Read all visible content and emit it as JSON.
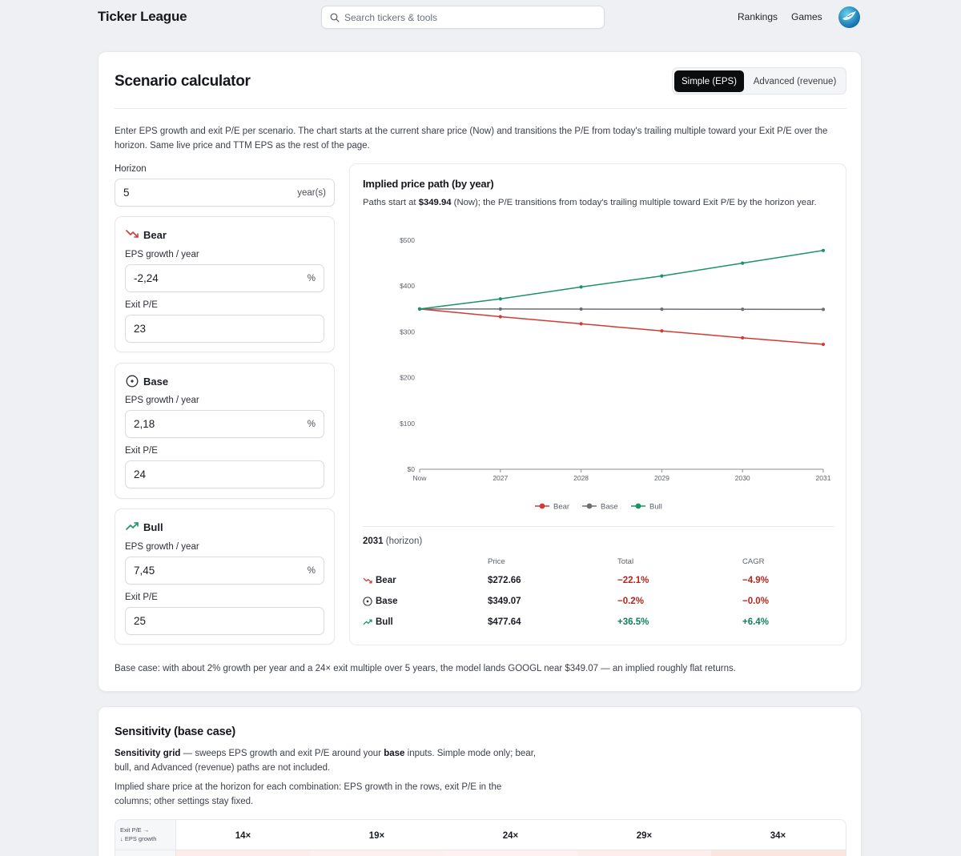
{
  "nav": {
    "brand": "Ticker League",
    "search_placeholder": "Search tickers & tools",
    "links": [
      "Rankings",
      "Games"
    ]
  },
  "calculator": {
    "title": "Scenario calculator",
    "modes": [
      "Simple (EPS)",
      "Advanced (revenue)"
    ],
    "active_mode": "Simple (EPS)",
    "intro": "Enter EPS growth and exit P/E per scenario. The chart starts at the current share price (Now) and transitions the P/E from today's trailing multiple toward your Exit P/E over the horizon. Same live price and TTM EPS as the rest of the page.",
    "horizon": {
      "label": "Horizon",
      "value": "5",
      "suffix": "year(s)"
    },
    "scenarios": [
      {
        "name": "Bear",
        "icon": "trending-down-icon",
        "growth_label": "EPS growth / year",
        "growth": "-2,24",
        "growth_suffix": "%",
        "pe_label": "Exit P/E",
        "pe": "23"
      },
      {
        "name": "Base",
        "icon": "target-icon",
        "growth_label": "EPS growth / year",
        "growth": "2,18",
        "growth_suffix": "%",
        "pe_label": "Exit P/E",
        "pe": "24"
      },
      {
        "name": "Bull",
        "icon": "trending-up-icon",
        "growth_label": "EPS growth / year",
        "growth": "7,45",
        "growth_suffix": "%",
        "pe_label": "Exit P/E",
        "pe": "25"
      }
    ],
    "chart_panel": {
      "title": "Implied price path (by year)",
      "sub_prefix": "Paths start at ",
      "sub_price": "$349.94",
      "sub_suffix": " (Now); the P/E transitions from today's trailing multiple toward Exit P/E by the horizon year."
    },
    "horizon_table": {
      "year": "2031",
      "year_note": " (horizon)",
      "headers": [
        "Price",
        "Total",
        "CAGR"
      ],
      "rows": [
        {
          "name": "Bear",
          "price": "$272.66",
          "total": "−22.1%",
          "cagr": "−4.9%",
          "tone": "neg"
        },
        {
          "name": "Base",
          "price": "$349.07",
          "total": "−0.2%",
          "cagr": "−0.0%",
          "tone": "neg"
        },
        {
          "name": "Bull",
          "price": "$477.64",
          "total": "+36.5%",
          "cagr": "+6.4%",
          "tone": "pos"
        }
      ]
    },
    "footnote": "Base case: with about 2% growth per year and a 24× exit multiple over 5 years, the model lands GOOGL near $349.07 — an implied roughly flat returns."
  },
  "colors": {
    "bear": "#d23a34",
    "base": "#6b6e73",
    "bull": "#1a9365",
    "neg": "#b3261e",
    "pos": "#12805a"
  },
  "chart_data": {
    "type": "line",
    "x": [
      "Now",
      "2027",
      "2028",
      "2029",
      "2030",
      "2031"
    ],
    "ylim": [
      0,
      500
    ],
    "yticks": [
      0,
      100,
      200,
      300,
      400,
      500
    ],
    "ytick_labels": [
      "$0",
      "$100",
      "$200",
      "$300",
      "$400",
      "$500"
    ],
    "series": [
      {
        "name": "Bear",
        "values": [
          349.94,
          333,
          317.5,
          302,
          287,
          272.66
        ]
      },
      {
        "name": "Base",
        "values": [
          349.94,
          349.8,
          349.6,
          349.4,
          349.2,
          349.07
        ]
      },
      {
        "name": "Bull",
        "values": [
          349.94,
          372,
          398,
          422,
          450,
          477.64
        ]
      }
    ],
    "legend": "bottom"
  },
  "sensitivity": {
    "title": "Sensitivity (base case)",
    "p1_bold": "Sensitivity grid",
    "p1_a": " — sweeps EPS growth and exit P/E around your ",
    "p1_bold2": "base",
    "p1_b": " inputs. Simple mode only; bear, bull, and Advanced (revenue) paths are not included.",
    "p2": "Implied share price at the horizon for each combination: EPS growth in the rows, exit P/E in the columns; other settings stay fixed.",
    "corner_top": "Exit P/E →",
    "corner_bottom": "↓ EPS growth",
    "columns": [
      "14×",
      "19×",
      "24×",
      "29×",
      "34×"
    ]
  }
}
